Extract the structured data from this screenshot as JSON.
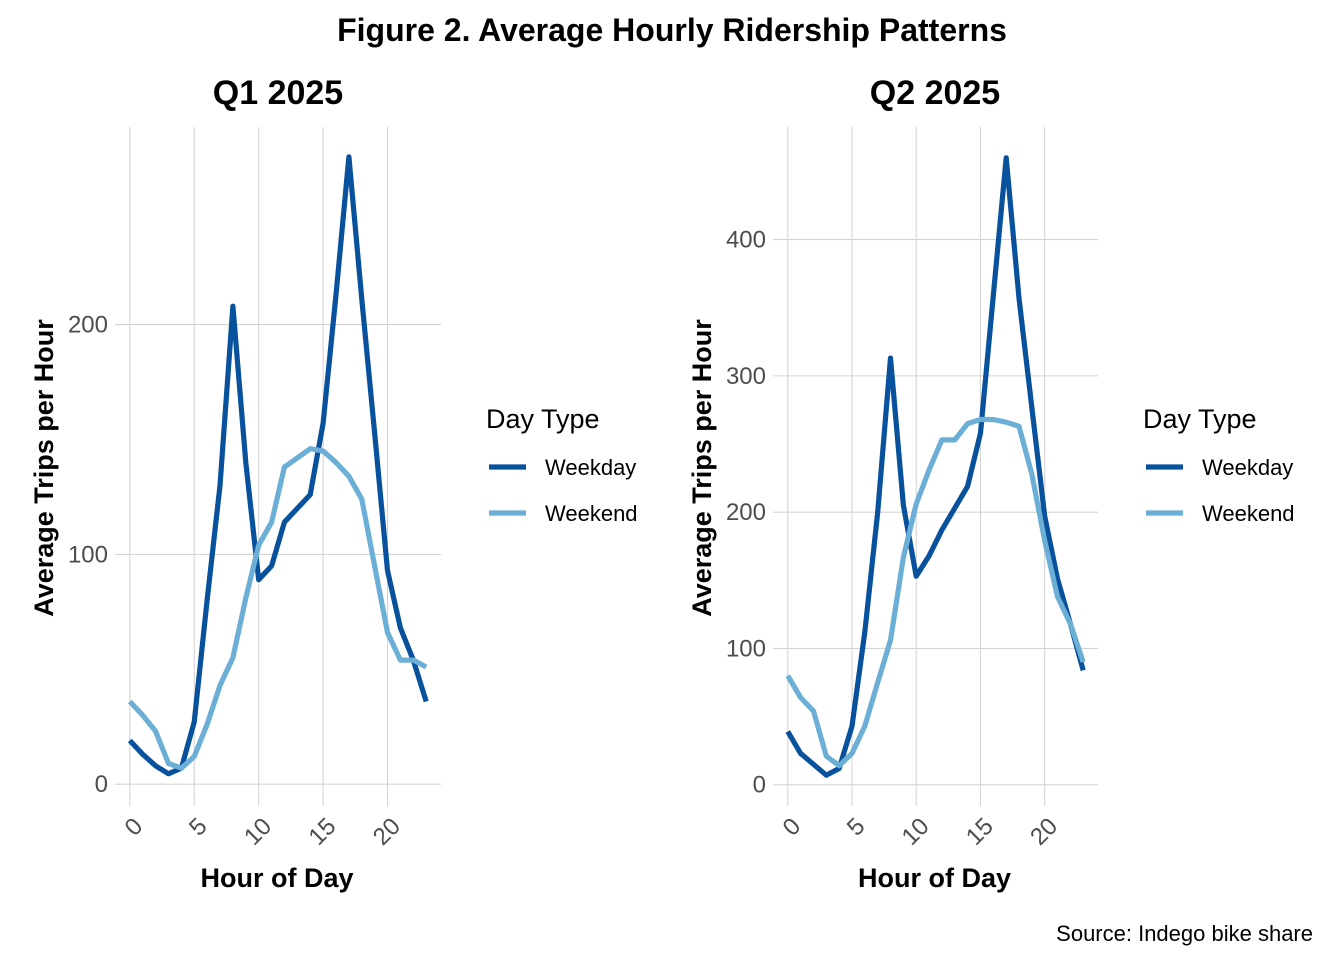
{
  "title": "Figure 2. Average Hourly Ridership Patterns",
  "caption": "Source: Indego bike share",
  "colors": {
    "Weekday": "#08519c",
    "Weekend": "#6baed6"
  },
  "chart_data": [
    {
      "type": "line",
      "title": "Q1 2025",
      "xlabel": "Hour of Day",
      "ylabel": "Average Trips per Hour",
      "x": [
        0,
        1,
        2,
        3,
        4,
        5,
        6,
        7,
        8,
        9,
        10,
        11,
        12,
        13,
        14,
        15,
        16,
        17,
        18,
        19,
        20,
        21,
        22,
        23
      ],
      "xticks": [
        0,
        5,
        10,
        15,
        20
      ],
      "yticks": [
        0,
        100,
        200
      ],
      "xlim": [
        -1.15,
        24.15
      ],
      "ylim": [
        -9.5,
        286
      ],
      "grid": true,
      "legend": {
        "title": "Day Type",
        "placement": "right"
      },
      "series": [
        {
          "name": "Weekday",
          "values": [
            19,
            13,
            8,
            4.5,
            7,
            27,
            80,
            130,
            208,
            140,
            89,
            95,
            114,
            120,
            126,
            157,
            213,
            273,
            211,
            153,
            93,
            68,
            54,
            36
          ]
        },
        {
          "name": "Weekend",
          "values": [
            36,
            30,
            23,
            9,
            7,
            12,
            26,
            43,
            55,
            81,
            104,
            114,
            138,
            142,
            146,
            145,
            140,
            134,
            124,
            95,
            66,
            54,
            54,
            51
          ]
        }
      ]
    },
    {
      "type": "line",
      "title": "Q2 2025",
      "xlabel": "Hour of Day",
      "ylabel": "Average Trips per Hour",
      "x": [
        0,
        1,
        2,
        3,
        4,
        5,
        6,
        7,
        8,
        9,
        10,
        11,
        12,
        13,
        14,
        15,
        16,
        17,
        18,
        19,
        20,
        21,
        22,
        23
      ],
      "xticks": [
        0,
        5,
        10,
        15,
        20
      ],
      "yticks": [
        0,
        100,
        200,
        300,
        400
      ],
      "xlim": [
        -1.15,
        24.15
      ],
      "ylim": [
        -15.6,
        482.6
      ],
      "grid": true,
      "legend": {
        "title": "Day Type",
        "placement": "right"
      },
      "series": [
        {
          "name": "Weekday",
          "values": [
            39,
            23,
            15,
            7,
            12,
            43,
            112,
            200,
            313,
            205,
            153,
            168,
            187,
            203,
            219,
            258,
            359,
            460,
            357,
            277,
            197,
            151,
            118,
            84
          ]
        },
        {
          "name": "Weekend",
          "values": [
            80,
            64,
            54,
            21,
            14,
            23,
            43,
            75,
            106,
            167,
            206,
            231,
            253,
            253,
            265,
            268,
            268,
            266,
            263,
            228,
            179,
            138,
            118,
            90
          ]
        }
      ]
    }
  ]
}
